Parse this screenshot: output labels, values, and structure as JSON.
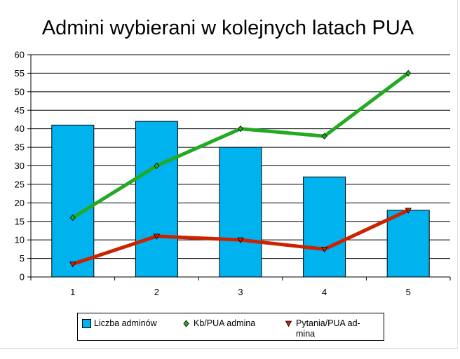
{
  "chart_data": {
    "type": "bar",
    "title": "Admini wybierani w kolejnych latach PUA",
    "categories": [
      "1",
      "2",
      "3",
      "4",
      "5"
    ],
    "ylim": [
      0,
      60
    ],
    "yticks": [
      "0",
      "5",
      "10",
      "15",
      "20",
      "25",
      "30",
      "35",
      "40",
      "45",
      "50",
      "55",
      "60"
    ],
    "grid": true,
    "legend_position": "bottom",
    "series": [
      {
        "name": "Liczba adminów",
        "kind": "bar",
        "color": "#00b2ee",
        "marker": "square",
        "values": [
          41,
          42,
          35,
          27,
          18
        ]
      },
      {
        "name": "Kb/PUA admina",
        "kind": "line",
        "color": "#22aa22",
        "marker": "diamond",
        "values": [
          16,
          30,
          40,
          38,
          55
        ]
      },
      {
        "name": "Pytania/PUA admina",
        "kind": "line",
        "color": "#cc2200",
        "marker": "triangle-down",
        "values": [
          3.5,
          11,
          10,
          7.5,
          18
        ]
      }
    ]
  },
  "legend": {
    "items": [
      {
        "label": "Liczba adminów",
        "color": "#00b2ee",
        "icon": "square-swatch"
      },
      {
        "label": "Kb/PUA admina",
        "color": "#22aa22",
        "icon": "diamond-marker"
      },
      {
        "label": "Pytania/PUA ad-\nmina",
        "color": "#cc2200",
        "icon": "triangle-down-marker"
      }
    ]
  }
}
